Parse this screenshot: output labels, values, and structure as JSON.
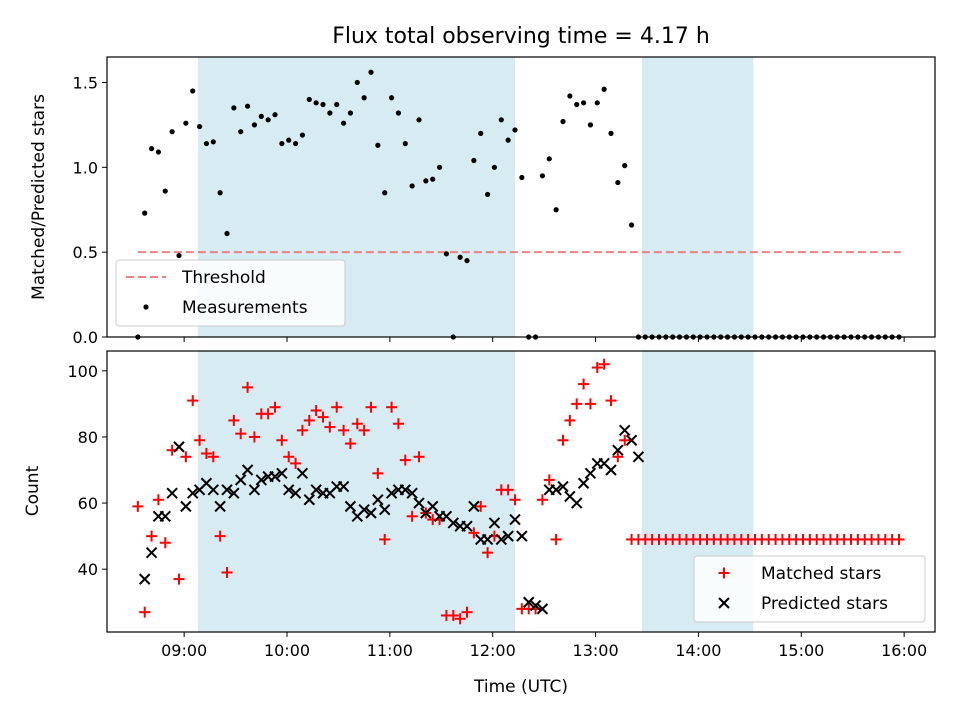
{
  "title": "Flux total observing time = 4.17 h",
  "xlabel": "Time (UTC)",
  "x_tick_labels": [
    "09:00",
    "10:00",
    "11:00",
    "12:00",
    "13:00",
    "14:00",
    "15:00",
    "16:00"
  ],
  "colors": {
    "shade": "#add8e6",
    "threshold": "#f08080",
    "measurement": "#000000",
    "matched": "#ff0000",
    "predicted": "#000000"
  },
  "chart_data": [
    {
      "type": "scatter",
      "title": "Flux total observing time = 4.17 h",
      "xlabel": "",
      "ylabel": "Matched/Predicted stars",
      "xlim": [
        "08:15",
        "16:18"
      ],
      "ylim": [
        0,
        1.65
      ],
      "y_ticks": [
        "0.0",
        "0.5",
        "1.0",
        "1.5"
      ],
      "legend": "bottom-left",
      "shaded_intervals": [
        [
          "09:08",
          "12:13"
        ],
        [
          "13:27",
          "14:32"
        ]
      ],
      "threshold": {
        "name": "Threshold",
        "value": 0.5,
        "x_range": [
          "08:33",
          "15:58"
        ]
      },
      "series": [
        {
          "name": "Measurements",
          "x": [
            "08:33",
            "08:37",
            "08:41",
            "08:45",
            "08:49",
            "08:53",
            "08:57",
            "09:01",
            "09:05",
            "09:09",
            "09:13",
            "09:17",
            "09:21",
            "09:25",
            "09:29",
            "09:33",
            "09:37",
            "09:41",
            "09:45",
            "09:49",
            "09:53",
            "09:57",
            "10:01",
            "10:05",
            "10:09",
            "10:13",
            "10:17",
            "10:21",
            "10:25",
            "10:29",
            "10:33",
            "10:37",
            "10:41",
            "10:45",
            "10:49",
            "10:53",
            "10:57",
            "11:01",
            "11:05",
            "11:09",
            "11:13",
            "11:17",
            "11:21",
            "11:25",
            "11:29",
            "11:33",
            "11:37",
            "11:41",
            "11:45",
            "11:49",
            "11:53",
            "11:57",
            "12:01",
            "12:05",
            "12:09",
            "12:13",
            "12:17",
            "12:21",
            "12:25",
            "12:29",
            "12:33",
            "12:37",
            "12:41",
            "12:45",
            "12:49",
            "12:53",
            "12:57",
            "13:01",
            "13:05",
            "13:09",
            "13:13",
            "13:17",
            "13:21",
            "13:25",
            "13:29",
            "13:33",
            "13:37",
            "13:41",
            "13:45",
            "13:49",
            "13:53",
            "13:57",
            "14:01",
            "14:05",
            "14:09",
            "14:13",
            "14:17",
            "14:21",
            "14:25",
            "14:29",
            "14:33",
            "14:37",
            "14:41",
            "14:45",
            "14:49",
            "14:53",
            "14:57",
            "15:01",
            "15:05",
            "15:09",
            "15:13",
            "15:17",
            "15:21",
            "15:25",
            "15:29",
            "15:33",
            "15:37",
            "15:41",
            "15:45",
            "15:49",
            "15:53",
            "15:57"
          ],
          "values": [
            0.0,
            0.73,
            1.11,
            1.09,
            0.86,
            1.21,
            0.48,
            1.26,
            1.45,
            1.24,
            1.14,
            1.15,
            0.85,
            0.61,
            1.35,
            1.21,
            1.36,
            1.25,
            1.3,
            1.28,
            1.31,
            1.14,
            1.16,
            1.14,
            1.19,
            1.4,
            1.38,
            1.37,
            1.32,
            1.37,
            1.26,
            1.32,
            1.5,
            1.41,
            1.56,
            1.13,
            0.85,
            1.41,
            1.32,
            1.14,
            0.89,
            1.28,
            0.92,
            0.93,
            1.0,
            0.49,
            0.0,
            0.47,
            0.45,
            1.04,
            1.2,
            0.84,
            1.0,
            1.28,
            1.16,
            1.22,
            0.94,
            0.0,
            0.0,
            0.95,
            1.05,
            0.75,
            1.27,
            1.42,
            1.37,
            1.38,
            1.25,
            1.38,
            1.46,
            1.2,
            0.91,
            1.01,
            0.66,
            0.0,
            0.0,
            0.0,
            0.0,
            0.0,
            0.0,
            0.0,
            0.0,
            0.0,
            0.0,
            0.0,
            0.0,
            0.0,
            0.0,
            0.0,
            0.0,
            0.0,
            0.0,
            0.0,
            0.0,
            0.0,
            0.0,
            0.0,
            0.0,
            0.0,
            0.0,
            0.0,
            0.0,
            0.0,
            0.0,
            0.0,
            0.0,
            0.0,
            0.0,
            0.0,
            0.0,
            0.0,
            0.0,
            0.0
          ]
        }
      ]
    },
    {
      "type": "scatter",
      "title": "",
      "xlabel": "Time (UTC)",
      "ylabel": "Count",
      "xlim": [
        "08:15",
        "16:18"
      ],
      "ylim": [
        21,
        106
      ],
      "y_ticks": [
        "40",
        "60",
        "80",
        "100"
      ],
      "legend": "bottom-right",
      "shaded_intervals": [
        [
          "09:08",
          "12:13"
        ],
        [
          "13:27",
          "14:32"
        ]
      ],
      "series": [
        {
          "name": "Matched stars",
          "marker": "+",
          "x": [
            "08:33",
            "08:37",
            "08:41",
            "08:45",
            "08:49",
            "08:53",
            "08:57",
            "09:01",
            "09:05",
            "09:09",
            "09:13",
            "09:17",
            "09:21",
            "09:25",
            "09:29",
            "09:33",
            "09:37",
            "09:41",
            "09:45",
            "09:49",
            "09:53",
            "09:57",
            "10:01",
            "10:05",
            "10:09",
            "10:13",
            "10:17",
            "10:21",
            "10:25",
            "10:29",
            "10:33",
            "10:37",
            "10:41",
            "10:45",
            "10:49",
            "10:53",
            "10:57",
            "11:01",
            "11:05",
            "11:09",
            "11:13",
            "11:17",
            "11:21",
            "11:25",
            "11:29",
            "11:33",
            "11:37",
            "11:41",
            "11:45",
            "11:49",
            "11:53",
            "11:57",
            "12:01",
            "12:05",
            "12:09",
            "12:13",
            "12:17",
            "12:21",
            "12:25",
            "12:29",
            "12:33",
            "12:37",
            "12:41",
            "12:45",
            "12:49",
            "12:53",
            "12:57",
            "13:01",
            "13:05",
            "13:09",
            "13:13",
            "13:17",
            "13:21",
            "13:25",
            "13:29",
            "13:33",
            "13:37",
            "13:41",
            "13:45",
            "13:49",
            "13:53",
            "13:57",
            "14:01",
            "14:05",
            "14:09",
            "14:13",
            "14:17",
            "14:21",
            "14:25",
            "14:29",
            "14:33",
            "14:37",
            "14:41",
            "14:45",
            "14:49",
            "14:53",
            "14:57",
            "15:01",
            "15:05",
            "15:09",
            "15:13",
            "15:17",
            "15:21",
            "15:25",
            "15:29",
            "15:33",
            "15:37",
            "15:41",
            "15:45",
            "15:49",
            "15:53",
            "15:57"
          ],
          "values": [
            59,
            27,
            50,
            61,
            48,
            76,
            37,
            74,
            91,
            79,
            75,
            74,
            50,
            39,
            85,
            81,
            95,
            80,
            87,
            87,
            89,
            79,
            74,
            72,
            82,
            85,
            88,
            86,
            83,
            89,
            82,
            78,
            84,
            82,
            89,
            69,
            49,
            89,
            84,
            73,
            56,
            74,
            57,
            55,
            55,
            26,
            26,
            25,
            27,
            51,
            59,
            45,
            50,
            64,
            64,
            61,
            28,
            28,
            28,
            61,
            67,
            49,
            79,
            85,
            90,
            96,
            90,
            101,
            102,
            91,
            74,
            79,
            49,
            49,
            49,
            49,
            49,
            49,
            49,
            49,
            49,
            49,
            49,
            49,
            49,
            49,
            49,
            49,
            49,
            49,
            49,
            49,
            49,
            49,
            49,
            49,
            49,
            49,
            49,
            49,
            49,
            49,
            49,
            49,
            49,
            49,
            49,
            49,
            49,
            49,
            49,
            49
          ]
        },
        {
          "name": "Predicted stars",
          "marker": "x",
          "x": [
            "08:37",
            "08:41",
            "08:45",
            "08:49",
            "08:53",
            "08:57",
            "09:01",
            "09:05",
            "09:09",
            "09:13",
            "09:17",
            "09:21",
            "09:25",
            "09:29",
            "09:33",
            "09:37",
            "09:41",
            "09:45",
            "09:49",
            "09:53",
            "09:57",
            "10:01",
            "10:05",
            "10:09",
            "10:13",
            "10:17",
            "10:21",
            "10:25",
            "10:29",
            "10:33",
            "10:37",
            "10:41",
            "10:45",
            "10:49",
            "10:53",
            "10:57",
            "11:01",
            "11:05",
            "11:09",
            "11:13",
            "11:17",
            "11:21",
            "11:25",
            "11:29",
            "11:33",
            "11:37",
            "11:41",
            "11:45",
            "11:49",
            "11:53",
            "11:57",
            "12:01",
            "12:05",
            "12:09",
            "12:13",
            "12:17",
            "12:21",
            "12:25",
            "12:29",
            "12:33",
            "12:37",
            "12:41",
            "12:45",
            "12:49",
            "12:53",
            "12:57",
            "13:01",
            "13:05",
            "13:09",
            "13:13",
            "13:17",
            "13:21",
            "13:25",
            "13:29",
            "13:33",
            "13:37",
            "13:41",
            "13:45",
            "13:49",
            "13:53",
            "13:57",
            "14:01",
            "14:05",
            "14:09",
            "14:13",
            "14:17",
            "14:21",
            "14:25",
            "14:29",
            "14:33"
          ],
          "values": [
            37,
            45,
            56,
            56,
            63,
            77,
            59,
            63,
            64,
            66,
            64,
            59,
            64,
            63,
            67,
            70,
            64,
            67,
            68,
            68,
            69,
            64,
            63,
            69,
            61,
            64,
            63,
            63,
            65,
            65,
            59,
            56,
            58,
            57,
            61,
            58,
            63,
            64,
            64,
            63,
            60,
            57,
            59,
            56,
            56,
            54,
            53,
            53,
            59,
            49,
            49,
            54,
            49,
            50,
            55,
            50,
            30,
            29,
            28,
            64,
            64,
            65,
            62,
            60,
            66,
            69,
            72,
            72,
            70,
            76,
            82,
            79,
            74,
            null,
            null,
            null,
            null,
            null,
            null,
            null,
            null,
            null,
            null,
            null,
            null,
            null,
            null,
            null,
            null,
            null
          ]
        }
      ]
    }
  ]
}
